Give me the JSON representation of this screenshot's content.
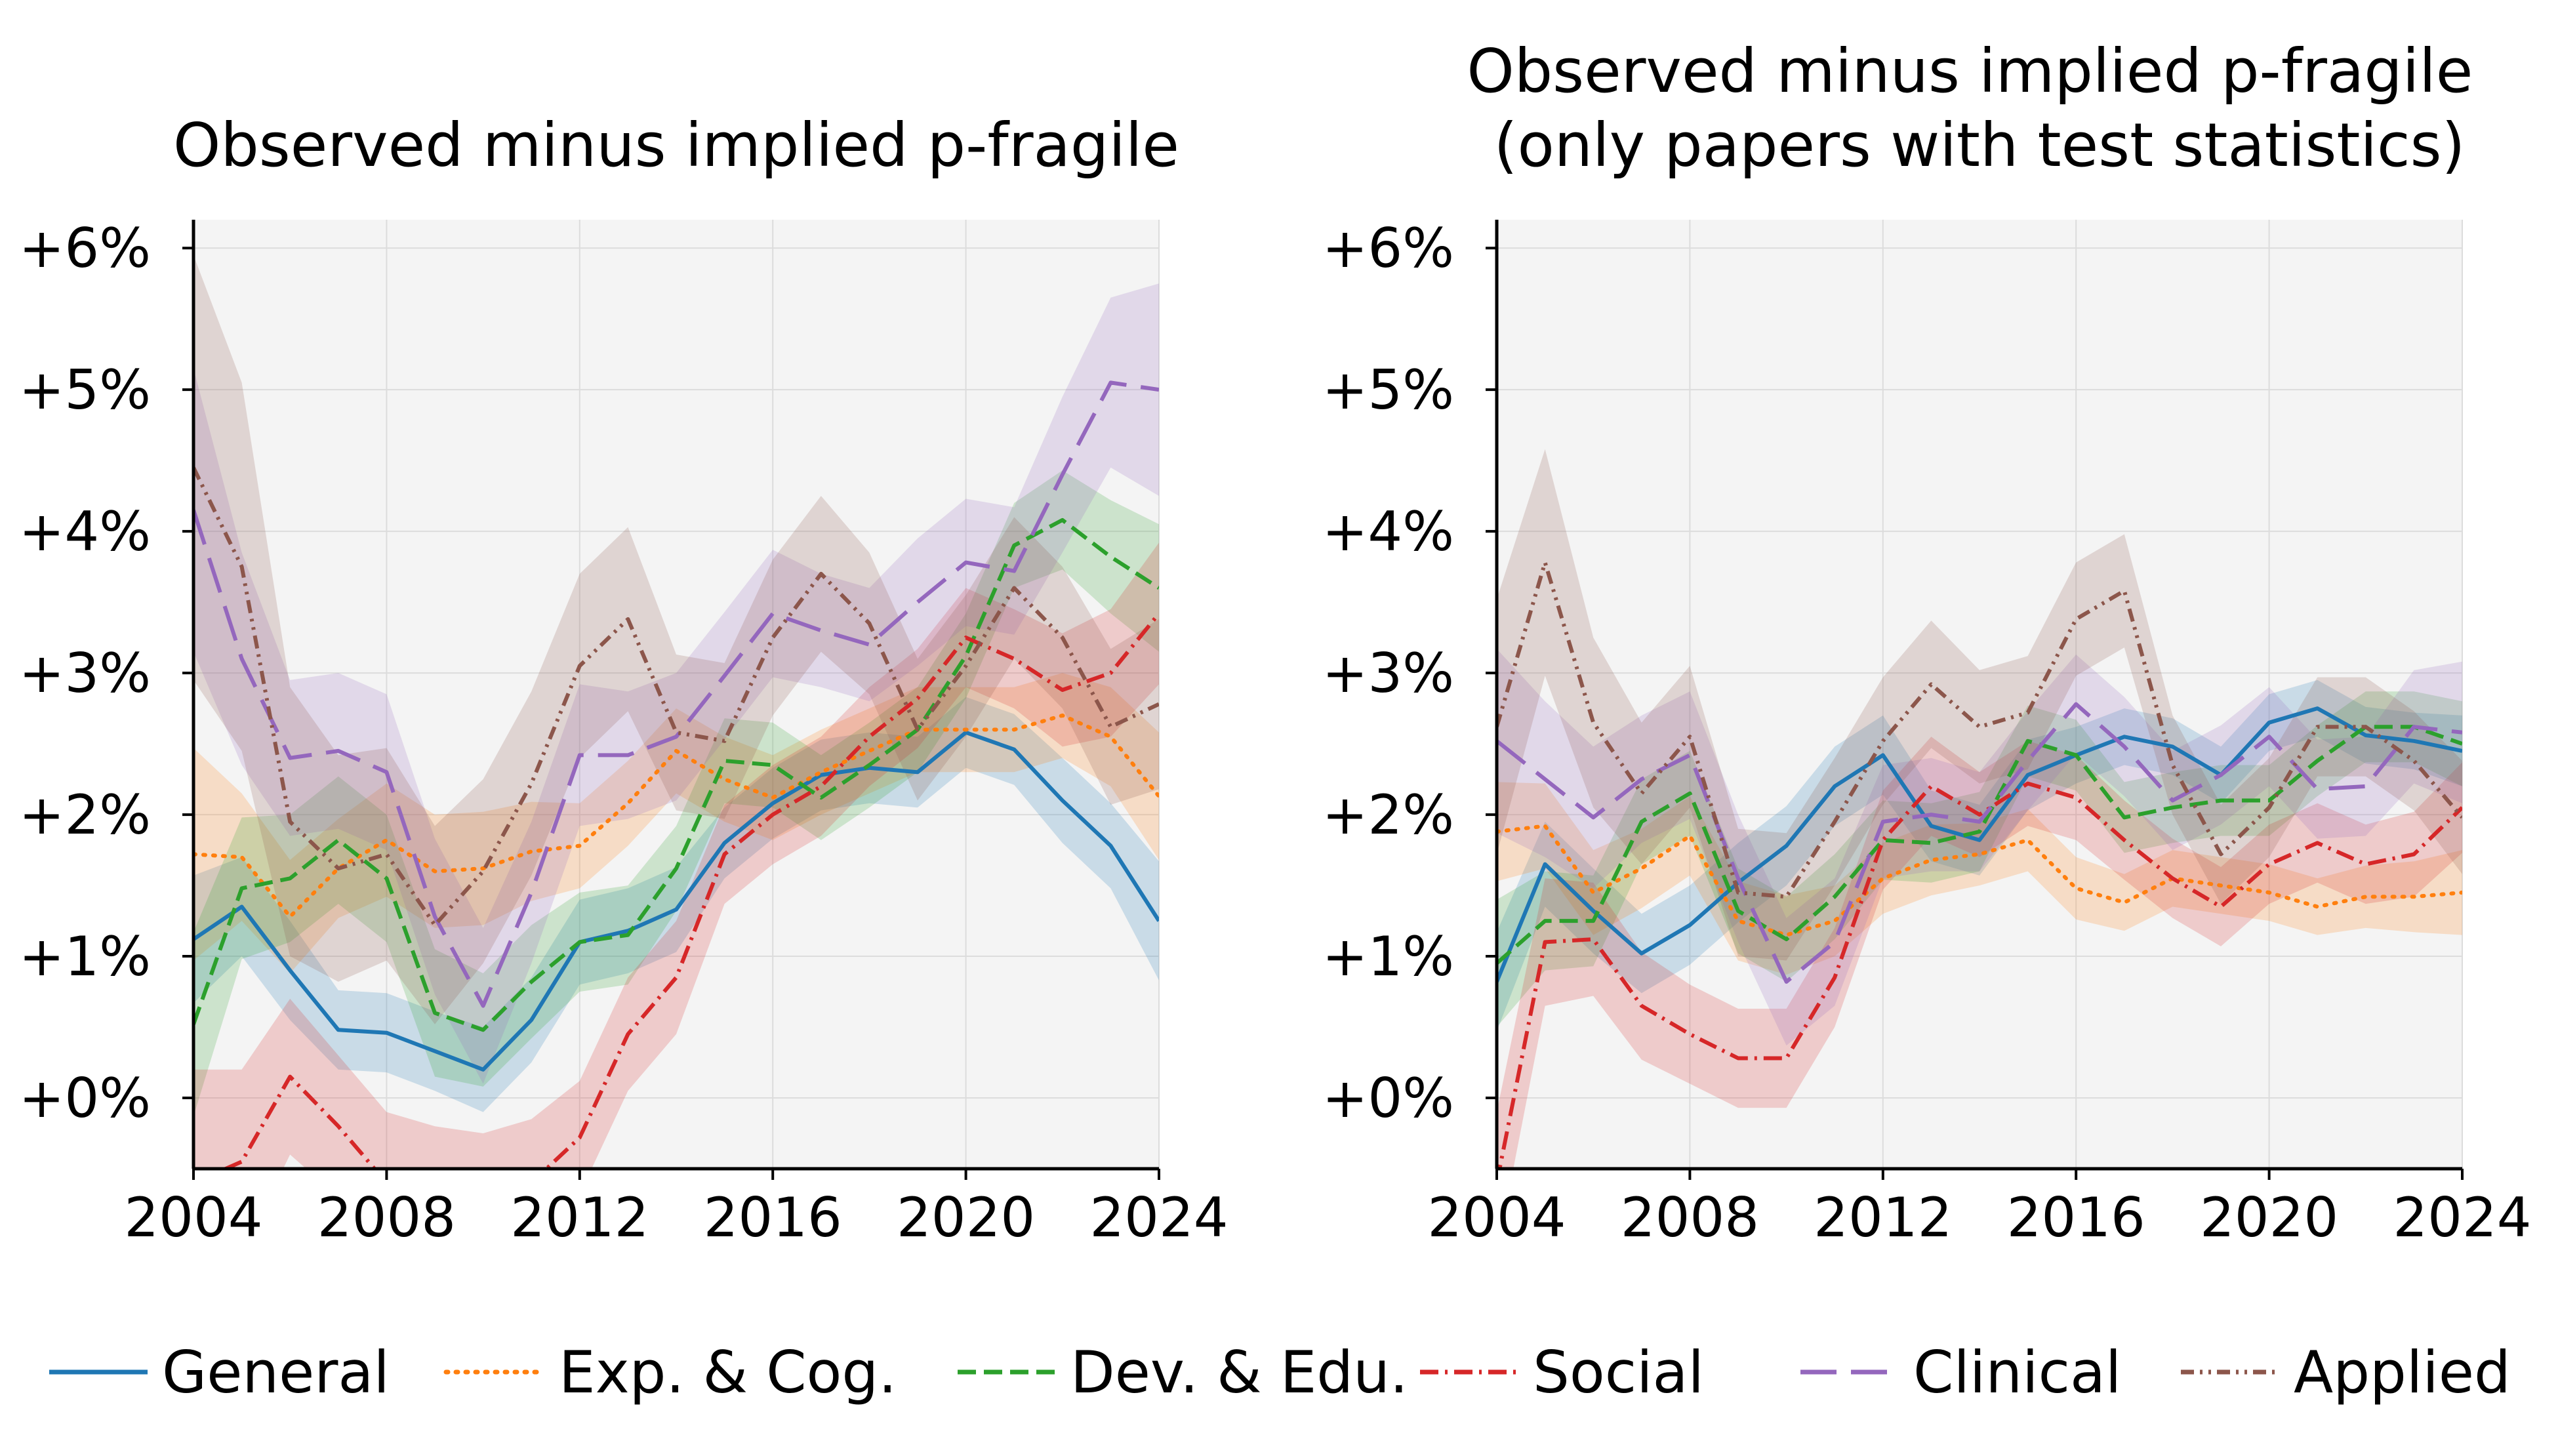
{
  "chart_data": [
    {
      "type": "line",
      "title": "Observed minus implied p-fragile",
      "xlabel": "",
      "ylabel": "",
      "xlim": [
        2004,
        2024
      ],
      "ylim": [
        -0.5,
        6.2
      ],
      "xticks": [
        "2004",
        "2008",
        "2012",
        "2016",
        "2020",
        "2024"
      ],
      "yticks": [
        "+0%",
        "+1%",
        "+2%",
        "+3%",
        "+4%",
        "+5%",
        "+6%"
      ],
      "grid": true,
      "x": [
        2004,
        2005,
        2006,
        2007,
        2008,
        2009,
        2010,
        2011,
        2012,
        2013,
        2014,
        2015,
        2016,
        2017,
        2018,
        2019,
        2020,
        2021,
        2022,
        2023,
        2024
      ],
      "series": [
        {
          "name": "General",
          "values": [
            1.12,
            1.35,
            0.9,
            0.48,
            0.46,
            0.33,
            0.2,
            0.55,
            1.1,
            1.18,
            1.33,
            1.8,
            2.08,
            2.28,
            2.33,
            2.3,
            2.58,
            2.46,
            2.1,
            1.78,
            1.25
          ],
          "band": [
            0.45,
            0.35,
            0.35,
            0.28,
            0.28,
            0.28,
            0.3,
            0.3,
            0.3,
            0.3,
            0.3,
            0.25,
            0.25,
            0.25,
            0.25,
            0.25,
            0.25,
            0.25,
            0.3,
            0.3,
            0.42
          ]
        },
        {
          "name": "Exp. & Cog.",
          "values": [
            1.72,
            1.7,
            1.28,
            1.62,
            1.82,
            1.6,
            1.62,
            1.74,
            1.78,
            2.08,
            2.45,
            2.25,
            2.12,
            2.3,
            2.45,
            2.6,
            2.6,
            2.6,
            2.7,
            2.55,
            2.13
          ],
          "band": [
            0.75,
            0.45,
            0.4,
            0.35,
            0.4,
            0.4,
            0.4,
            0.35,
            0.3,
            0.3,
            0.3,
            0.3,
            0.3,
            0.3,
            0.3,
            0.3,
            0.3,
            0.3,
            0.3,
            0.35,
            0.45
          ]
        },
        {
          "name": "Dev. & Edu.",
          "values": [
            0.52,
            1.48,
            1.55,
            1.82,
            1.55,
            0.6,
            0.48,
            0.82,
            1.1,
            1.15,
            1.62,
            2.38,
            2.35,
            2.12,
            2.35,
            2.6,
            3.12,
            3.9,
            4.08,
            3.82,
            3.6
          ],
          "band": [
            0.65,
            0.5,
            0.45,
            0.45,
            0.45,
            0.45,
            0.4,
            0.4,
            0.35,
            0.35,
            0.3,
            0.3,
            0.3,
            0.3,
            0.3,
            0.3,
            0.3,
            0.3,
            0.35,
            0.4,
            0.45
          ]
        },
        {
          "name": "Social",
          "values": [
            -0.6,
            -0.45,
            0.15,
            -0.2,
            -0.6,
            -0.7,
            -0.75,
            -0.6,
            -0.28,
            0.45,
            0.85,
            1.72,
            2.0,
            2.2,
            2.55,
            2.82,
            3.25,
            3.1,
            2.88,
            3.0,
            3.42
          ],
          "band": [
            0.8,
            0.65,
            0.55,
            0.5,
            0.5,
            0.5,
            0.5,
            0.45,
            0.4,
            0.4,
            0.4,
            0.35,
            0.35,
            0.35,
            0.35,
            0.35,
            0.35,
            0.35,
            0.4,
            0.45,
            0.5
          ]
        },
        {
          "name": "Clinical",
          "values": [
            4.15,
            3.1,
            2.4,
            2.45,
            2.3,
            1.28,
            0.65,
            1.45,
            2.42,
            2.42,
            2.55,
            2.98,
            3.42,
            3.3,
            3.2,
            3.5,
            3.78,
            3.72,
            4.4,
            5.05,
            5.0
          ],
          "band": [
            1.0,
            0.75,
            0.55,
            0.55,
            0.55,
            0.55,
            0.55,
            0.5,
            0.5,
            0.45,
            0.45,
            0.45,
            0.45,
            0.4,
            0.4,
            0.45,
            0.45,
            0.45,
            0.55,
            0.6,
            0.75
          ]
        },
        {
          "name": "Applied",
          "values": [
            4.45,
            3.75,
            1.95,
            1.62,
            1.72,
            1.22,
            1.6,
            2.22,
            3.05,
            3.38,
            2.58,
            2.52,
            3.25,
            3.7,
            3.35,
            2.6,
            3.05,
            3.6,
            3.25,
            2.62,
            2.78
          ],
          "band": [
            1.5,
            1.3,
            0.95,
            0.8,
            0.75,
            0.7,
            0.65,
            0.65,
            0.65,
            0.65,
            0.55,
            0.55,
            0.55,
            0.55,
            0.5,
            0.5,
            0.5,
            0.5,
            0.5,
            0.55,
            0.6
          ]
        }
      ]
    },
    {
      "type": "line",
      "title": "Observed minus implied p-fragile\n(only papers with test statistics)",
      "xlabel": "",
      "ylabel": "",
      "xlim": [
        2004,
        2024
      ],
      "ylim": [
        -0.5,
        6.2
      ],
      "xticks": [
        "2004",
        "2008",
        "2012",
        "2016",
        "2020",
        "2024"
      ],
      "yticks": [
        "+0%",
        "+1%",
        "+2%",
        "+3%",
        "+4%",
        "+5%",
        "+6%"
      ],
      "grid": true,
      "x": [
        2004,
        2005,
        2006,
        2007,
        2008,
        2009,
        2010,
        2011,
        2012,
        2013,
        2014,
        2015,
        2016,
        2017,
        2018,
        2019,
        2020,
        2021,
        2022,
        2023,
        2024
      ],
      "series": [
        {
          "name": "General",
          "values": [
            0.82,
            1.65,
            1.32,
            1.02,
            1.22,
            1.52,
            1.78,
            2.2,
            2.42,
            1.92,
            1.82,
            2.28,
            2.42,
            2.55,
            2.48,
            2.28,
            2.65,
            2.75,
            2.56,
            2.52,
            2.45
          ],
          "band": [
            0.35,
            0.3,
            0.3,
            0.28,
            0.28,
            0.28,
            0.28,
            0.28,
            0.28,
            0.25,
            0.25,
            0.25,
            0.2,
            0.2,
            0.2,
            0.2,
            0.2,
            0.2,
            0.2,
            0.2,
            0.25
          ]
        },
        {
          "name": "Exp. & Cog.",
          "values": [
            1.88,
            1.92,
            1.45,
            1.62,
            1.85,
            1.25,
            1.15,
            1.25,
            1.55,
            1.68,
            1.72,
            1.82,
            1.48,
            1.38,
            1.55,
            1.5,
            1.45,
            1.35,
            1.42,
            1.42,
            1.45
          ],
          "band": [
            0.35,
            0.3,
            0.3,
            0.28,
            0.28,
            0.28,
            0.28,
            0.25,
            0.25,
            0.25,
            0.22,
            0.22,
            0.22,
            0.2,
            0.2,
            0.2,
            0.2,
            0.2,
            0.22,
            0.25,
            0.3
          ]
        },
        {
          "name": "Dev. & Edu.",
          "values": [
            0.95,
            1.25,
            1.25,
            1.95,
            2.15,
            1.32,
            1.12,
            1.42,
            1.82,
            1.8,
            1.88,
            2.52,
            2.42,
            1.98,
            2.05,
            2.1,
            2.1,
            2.38,
            2.62,
            2.62,
            2.5
          ],
          "band": [
            0.45,
            0.35,
            0.32,
            0.3,
            0.3,
            0.3,
            0.3,
            0.3,
            0.28,
            0.28,
            0.28,
            0.25,
            0.25,
            0.25,
            0.25,
            0.25,
            0.25,
            0.25,
            0.25,
            0.25,
            0.3
          ]
        },
        {
          "name": "Social",
          "values": [
            -0.6,
            1.1,
            1.12,
            0.65,
            0.45,
            0.28,
            0.28,
            0.85,
            1.82,
            2.2,
            2.0,
            2.22,
            2.12,
            1.82,
            1.55,
            1.35,
            1.65,
            1.8,
            1.65,
            1.72,
            2.05
          ],
          "band": [
            0.5,
            0.45,
            0.4,
            0.38,
            0.35,
            0.35,
            0.35,
            0.35,
            0.35,
            0.35,
            0.3,
            0.3,
            0.3,
            0.28,
            0.28,
            0.28,
            0.28,
            0.28,
            0.28,
            0.3,
            0.32
          ]
        },
        {
          "name": "Clinical",
          "values": [
            2.52,
            2.25,
            1.98,
            2.25,
            2.42,
            1.55,
            0.82,
            1.1,
            1.95,
            2.0,
            1.95,
            2.38,
            2.78,
            2.48,
            2.1,
            2.28,
            2.55,
            2.18,
            2.2,
            2.62,
            2.58
          ],
          "band": [
            0.65,
            0.55,
            0.5,
            0.45,
            0.45,
            0.45,
            0.45,
            0.45,
            0.4,
            0.4,
            0.35,
            0.35,
            0.35,
            0.35,
            0.35,
            0.35,
            0.35,
            0.35,
            0.35,
            0.4,
            0.5
          ]
        },
        {
          "name": "Applied",
          "values": [
            2.62,
            3.78,
            2.65,
            2.15,
            2.55,
            1.45,
            1.42,
            1.95,
            2.52,
            2.92,
            2.62,
            2.72,
            3.38,
            3.58,
            2.35,
            1.72,
            2.05,
            2.62,
            2.62,
            2.38,
            1.98
          ],
          "band": [
            0.9,
            0.8,
            0.6,
            0.5,
            0.5,
            0.45,
            0.45,
            0.45,
            0.45,
            0.45,
            0.4,
            0.4,
            0.4,
            0.4,
            0.35,
            0.35,
            0.35,
            0.35,
            0.35,
            0.35,
            0.4
          ]
        }
      ]
    }
  ],
  "legend": {
    "placement": "bottom",
    "items": [
      {
        "name": "General",
        "color": "#1f77b4",
        "style": "solid"
      },
      {
        "name": "Exp. & Cog.",
        "color": "#ff7f0e",
        "style": "dotted"
      },
      {
        "name": "Dev. & Edu.",
        "color": "#2ca02c",
        "style": "dashed"
      },
      {
        "name": "Social",
        "color": "#d62728",
        "style": "dashdot"
      },
      {
        "name": "Clinical",
        "color": "#9467bd",
        "style": "longdash"
      },
      {
        "name": "Applied",
        "color": "#8c564b",
        "style": "dashdotdot"
      }
    ]
  }
}
